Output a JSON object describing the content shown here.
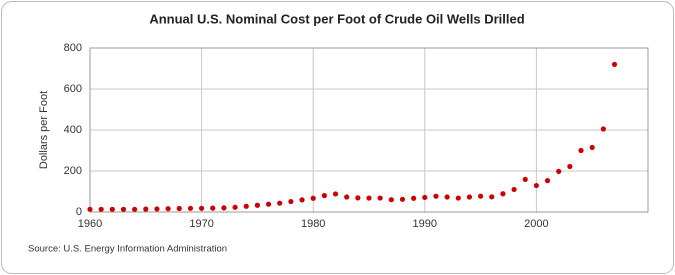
{
  "chart_data": {
    "type": "scatter",
    "title": "Annual U.S. Nominal Cost per Foot of Crude Oil Wells Drilled",
    "y_label": "Dollars per Foot",
    "source": "Source: U.S. Energy Information Administration",
    "x": [
      1960,
      1961,
      1962,
      1963,
      1964,
      1965,
      1966,
      1967,
      1968,
      1969,
      1970,
      1971,
      1972,
      1973,
      1974,
      1975,
      1976,
      1977,
      1978,
      1979,
      1980,
      1981,
      1982,
      1983,
      1984,
      1985,
      1986,
      1987,
      1988,
      1989,
      1990,
      1991,
      1992,
      1993,
      1994,
      1995,
      1996,
      1997,
      1998,
      1999,
      2000,
      2001,
      2002,
      2003,
      2004,
      2005,
      2006,
      2007
    ],
    "series": [
      {
        "name": "Cost per Foot",
        "color": "#cc0000",
        "values": [
          13,
          13,
          13,
          13,
          13,
          14,
          15,
          16,
          17,
          18,
          18,
          19,
          20,
          23,
          28,
          33,
          38,
          43,
          51,
          59,
          67,
          80,
          88,
          73,
          69,
          68,
          68,
          60,
          62,
          67,
          71,
          77,
          73,
          68,
          73,
          77,
          74,
          89,
          110,
          159,
          129,
          153,
          198,
          222,
          300,
          315,
          405,
          720
        ]
      }
    ],
    "xlim": [
      1960,
      2010
    ],
    "xticks": [
      1960,
      1970,
      1980,
      1990,
      2000
    ],
    "ylim": [
      0,
      800
    ],
    "yticks": [
      0,
      200,
      400,
      600,
      800
    ],
    "grid": true
  }
}
